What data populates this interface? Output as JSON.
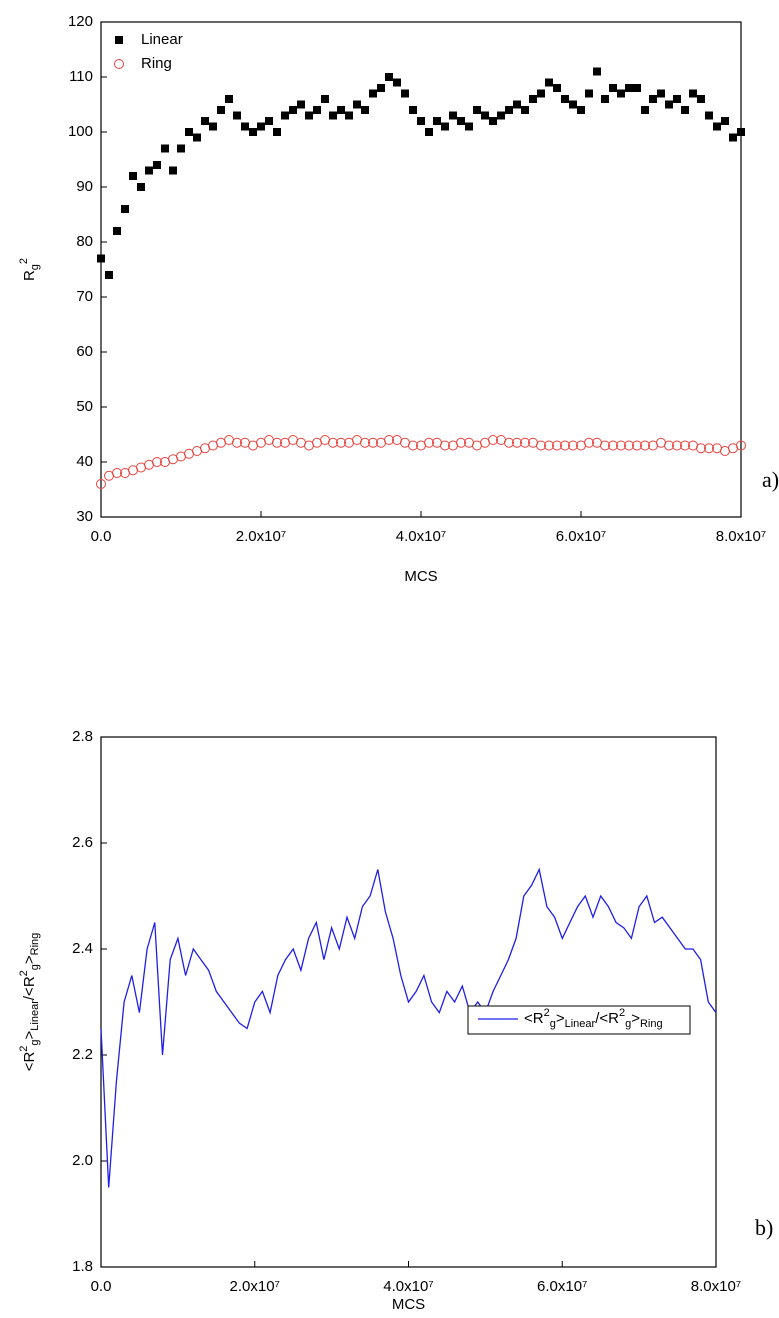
{
  "chart_data": [
    {
      "type": "scatter",
      "xlabel": "MCS",
      "ylabel": [
        {
          "text": "R"
        },
        {
          "text": "g",
          "pos": "sub"
        },
        {
          "text": "2",
          "pos": "sup"
        }
      ],
      "annotation": "a)",
      "legend": "upper left",
      "x": [
        0,
        1000000,
        2000000,
        3000000,
        4000000,
        5000000,
        6000000,
        7000000,
        8000000,
        9000000,
        10000000,
        11000000,
        12000000,
        13000000,
        14000000,
        15000000,
        16000000,
        17000000,
        18000000,
        19000000,
        20000000,
        21000000,
        22000000,
        23000000,
        24000000,
        25000000,
        26000000,
        27000000,
        28000000,
        29000000,
        30000000,
        31000000,
        32000000,
        33000000,
        34000000,
        35000000,
        36000000,
        37000000,
        38000000,
        39000000,
        40000000,
        41000000,
        42000000,
        43000000,
        44000000,
        45000000,
        46000000,
        47000000,
        48000000,
        49000000,
        50000000,
        51000000,
        52000000,
        53000000,
        54000000,
        55000000,
        56000000,
        57000000,
        58000000,
        59000000,
        60000000,
        61000000,
        62000000,
        63000000,
        64000000,
        65000000,
        66000000,
        67000000,
        68000000,
        69000000,
        70000000,
        71000000,
        72000000,
        73000000,
        74000000,
        75000000,
        76000000,
        77000000,
        78000000,
        79000000,
        80000000
      ],
      "series": [
        {
          "name": "Linear",
          "color": "#000000",
          "marker": "square",
          "values": [
            77,
            74,
            82,
            86,
            92,
            90,
            93,
            94,
            97,
            93,
            97,
            100,
            99,
            102,
            101,
            104,
            106,
            103,
            101,
            100,
            101,
            102,
            100,
            103,
            104,
            105,
            103,
            104,
            106,
            103,
            104,
            103,
            105,
            104,
            107,
            108,
            110,
            109,
            107,
            104,
            102,
            100,
            102,
            101,
            103,
            102,
            101,
            104,
            103,
            102,
            103,
            104,
            105,
            104,
            106,
            107,
            109,
            108,
            106,
            105,
            104,
            107,
            111,
            106,
            108,
            107,
            108,
            108,
            104,
            106,
            107,
            105,
            106,
            104,
            107,
            106,
            103,
            101,
            102,
            99,
            100
          ]
        },
        {
          "name": "Ring",
          "color": "#e8413c",
          "marker": "open-circle",
          "values": [
            36,
            37.5,
            38,
            38,
            38.5,
            39,
            39.5,
            40,
            40,
            40.5,
            41,
            41.5,
            42,
            42.5,
            43,
            43.5,
            44,
            43.5,
            43.5,
            43,
            43.5,
            44,
            43.5,
            43.5,
            44,
            43.5,
            43,
            43.5,
            44,
            43.5,
            43.5,
            43.5,
            44,
            43.5,
            43.5,
            43.5,
            44,
            44,
            43.5,
            43,
            43,
            43.5,
            43.5,
            43,
            43,
            43.5,
            43.5,
            43,
            43.5,
            44,
            44,
            43.5,
            43.5,
            43.5,
            43.5,
            43,
            43,
            43,
            43,
            43,
            43,
            43.5,
            43.5,
            43,
            43,
            43,
            43,
            43,
            43,
            43,
            43.5,
            43,
            43,
            43,
            43,
            42.5,
            42.5,
            42.5,
            42,
            42.5,
            43
          ]
        }
      ],
      "xlim": [
        0,
        80000000
      ],
      "xticks": [
        {
          "value": 0,
          "label": "0.0"
        },
        {
          "value": 20000000,
          "label": "2.0x10⁷"
        },
        {
          "value": 40000000,
          "label": "4.0x10⁷"
        },
        {
          "value": 60000000,
          "label": "6.0x10⁷"
        },
        {
          "value": 80000000,
          "label": "8.0x10⁷"
        }
      ],
      "ylim": [
        30,
        120
      ],
      "yticks": [
        30,
        40,
        50,
        60,
        70,
        80,
        90,
        100,
        110,
        120
      ]
    },
    {
      "type": "line",
      "xlabel": "MCS",
      "ylabel": [
        {
          "text": "<R"
        },
        {
          "text": "2",
          "pos": "sup"
        },
        {
          "text": "g",
          "pos": "sub"
        },
        {
          "text": ">"
        },
        {
          "text": "Linear",
          "pos": "sub"
        },
        {
          "text": "/<R"
        },
        {
          "text": "2",
          "pos": "sup"
        },
        {
          "text": "g",
          "pos": "sub"
        },
        {
          "text": ">"
        },
        {
          "text": "Ring",
          "pos": "sub"
        }
      ],
      "annotation": "b)",
      "legend": "center right",
      "x": [
        0,
        1000000,
        2000000,
        3000000,
        4000000,
        5000000,
        6000000,
        7000000,
        8000000,
        9000000,
        10000000,
        11000000,
        12000000,
        13000000,
        14000000,
        15000000,
        16000000,
        17000000,
        18000000,
        19000000,
        20000000,
        21000000,
        22000000,
        23000000,
        24000000,
        25000000,
        26000000,
        27000000,
        28000000,
        29000000,
        30000000,
        31000000,
        32000000,
        33000000,
        34000000,
        35000000,
        36000000,
        37000000,
        38000000,
        39000000,
        40000000,
        41000000,
        42000000,
        43000000,
        44000000,
        45000000,
        46000000,
        47000000,
        48000000,
        49000000,
        50000000,
        51000000,
        52000000,
        53000000,
        54000000,
        55000000,
        56000000,
        57000000,
        58000000,
        59000000,
        60000000,
        61000000,
        62000000,
        63000000,
        64000000,
        65000000,
        66000000,
        67000000,
        68000000,
        69000000,
        70000000,
        71000000,
        72000000,
        73000000,
        74000000,
        75000000,
        76000000,
        77000000,
        78000000,
        79000000,
        80000000
      ],
      "series": [
        {
          "name": [
            {
              "text": "<R"
            },
            {
              "text": "2",
              "pos": "sup"
            },
            {
              "text": "g",
              "pos": "sub"
            },
            {
              "text": ">"
            },
            {
              "text": "Linear",
              "pos": "sub"
            },
            {
              "text": "/<R"
            },
            {
              "text": "2",
              "pos": "sup"
            },
            {
              "text": "g",
              "pos": "sub"
            },
            {
              "text": ">"
            },
            {
              "text": "Ring",
              "pos": "sub"
            }
          ],
          "color": "#1f1fe6",
          "values": [
            2.25,
            1.95,
            2.15,
            2.3,
            2.35,
            2.28,
            2.4,
            2.45,
            2.2,
            2.38,
            2.42,
            2.35,
            2.4,
            2.38,
            2.36,
            2.32,
            2.3,
            2.28,
            2.26,
            2.25,
            2.3,
            2.32,
            2.28,
            2.35,
            2.38,
            2.4,
            2.36,
            2.42,
            2.45,
            2.38,
            2.44,
            2.4,
            2.46,
            2.42,
            2.48,
            2.5,
            2.55,
            2.47,
            2.42,
            2.35,
            2.3,
            2.32,
            2.35,
            2.3,
            2.28,
            2.32,
            2.3,
            2.33,
            2.28,
            2.3,
            2.28,
            2.32,
            2.35,
            2.38,
            2.42,
            2.5,
            2.52,
            2.55,
            2.48,
            2.46,
            2.42,
            2.45,
            2.48,
            2.5,
            2.46,
            2.5,
            2.48,
            2.45,
            2.44,
            2.42,
            2.48,
            2.5,
            2.45,
            2.46,
            2.44,
            2.42,
            2.4,
            2.4,
            2.38,
            2.3,
            2.28
          ]
        }
      ],
      "xlim": [
        0,
        80000000
      ],
      "xticks": [
        {
          "value": 0,
          "label": "0.0"
        },
        {
          "value": 20000000,
          "label": "2.0x10⁷"
        },
        {
          "value": 40000000,
          "label": "4.0x10⁷"
        },
        {
          "value": 60000000,
          "label": "6.0x10⁷"
        },
        {
          "value": 80000000,
          "label": "8.0x10⁷"
        }
      ],
      "ylim": [
        1.8,
        2.8
      ],
      "yticks": [
        1.8,
        {
          "value": 2,
          "label": "2.0"
        },
        2.2,
        2.4,
        2.6,
        2.8
      ]
    }
  ]
}
